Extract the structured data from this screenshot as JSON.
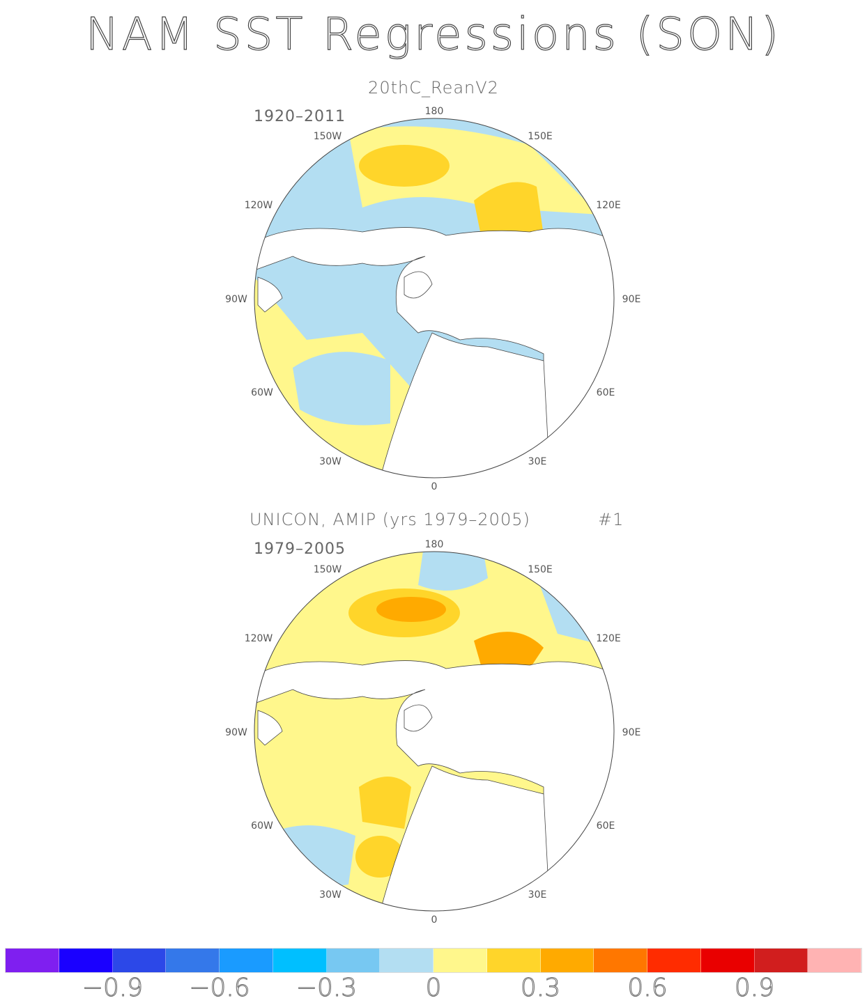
{
  "title": "NAM SST Regressions (SON)",
  "panels": [
    {
      "subtitle": "20thC_ReanV2",
      "period": "1920–2011",
      "extra": ""
    },
    {
      "subtitle": "UNICON, AMIP (yrs 1979–2005)",
      "period": "1979–2005",
      "extra": "#1"
    }
  ],
  "lon_labels": {
    "n": "180",
    "nw": "150W",
    "ne": "150E",
    "wnw": "120W",
    "ene": "120E",
    "w": "90W",
    "e": "90E",
    "wsw": "60W",
    "esе": "60E",
    "sw": "30W",
    "se": "30E",
    "s": "0"
  },
  "colorbar": {
    "colors": [
      "#7F1FF0",
      "#1A00FF",
      "#2C48E8",
      "#3478EA",
      "#1A9BFF",
      "#00BFFF",
      "#77C8F2",
      "#B3DEF2",
      "#FFF78C",
      "#FFD52A",
      "#FFAA00",
      "#FF7700",
      "#FF2C00",
      "#E90000",
      "#D11E1E",
      "#FFB3B3"
    ],
    "ticks": [
      "−0.9",
      "−0.6",
      "−0.3",
      "0",
      "0.3",
      "0.6",
      "0.9"
    ]
  },
  "land_color": "#FFFFFF"
}
